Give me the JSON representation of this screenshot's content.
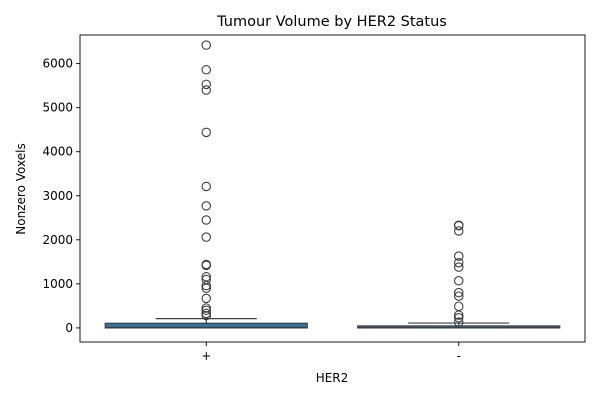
{
  "chart_data": {
    "type": "box",
    "title": "Tumour Volume by HER2 Status",
    "xlabel": "HER2",
    "ylabel": "Nonzero Voxels",
    "ylim": [
      -320,
      6650
    ],
    "yticks": [
      0,
      1000,
      2000,
      3000,
      4000,
      5000,
      6000
    ],
    "yticklabels": [
      "0",
      "1000",
      "2000",
      "3000",
      "4000",
      "5000",
      "6000"
    ],
    "grid": false,
    "box_color": "#3274a1",
    "line_color": "#3d3d3d",
    "categories": [
      "+",
      "-"
    ],
    "boxes": [
      {
        "category": "+",
        "whisker_low": 0,
        "q1": 0,
        "median": 10,
        "q3": 105,
        "whisker_high": 210,
        "outliers": [
          6420,
          5860,
          5530,
          5400,
          4440,
          3210,
          2770,
          2450,
          2060,
          1440,
          1420,
          1160,
          1100,
          960,
          900,
          670,
          450,
          400,
          330,
          280
        ]
      },
      {
        "category": "-",
        "whisker_low": 0,
        "q1": 0,
        "median": 5,
        "q3": 45,
        "whisker_high": 110,
        "outliers": [
          2330,
          2320,
          2200,
          1630,
          1480,
          1380,
          1070,
          800,
          720,
          490,
          290,
          230,
          130
        ]
      }
    ]
  }
}
